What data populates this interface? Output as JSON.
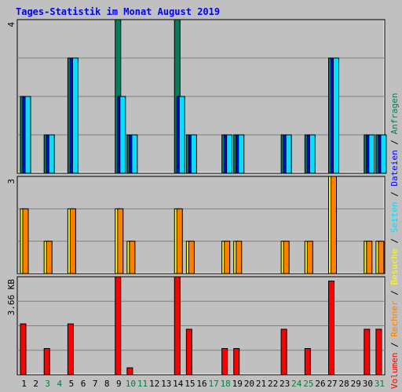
{
  "title": "Tages-Statistik im Monat August 2019",
  "colors": {
    "background": "#c0c0c0",
    "title": "#0000ff",
    "anfragen": "#00805a",
    "dateien": "#0000ff",
    "seiten": "#00e0ff",
    "besuche": "#ffff00",
    "rechner": "#ff8000",
    "volumen": "#ff0000",
    "weekend": "#008040"
  },
  "chart_data": {
    "type": "bar",
    "x": [
      "1",
      "2",
      "3",
      "4",
      "5",
      "6",
      "7",
      "8",
      "9",
      "10",
      "11",
      "12",
      "13",
      "14",
      "15",
      "16",
      "17",
      "18",
      "19",
      "20",
      "21",
      "22",
      "23",
      "24",
      "25",
      "26",
      "27",
      "28",
      "29",
      "30",
      "31"
    ],
    "weekend_days": [
      "3",
      "4",
      "10",
      "11",
      "17",
      "18",
      "24",
      "25",
      "31"
    ],
    "panels": [
      {
        "id": "top",
        "ymax_label": "4",
        "ylim": [
          0,
          4
        ],
        "series": [
          {
            "name": "Anfragen",
            "color": "#00805a",
            "values": [
              2,
              0,
              1,
              0,
              3,
              0,
              0,
              0,
              4,
              1,
              0,
              0,
              0,
              4,
              1,
              0,
              0,
              1,
              1,
              0,
              0,
              0,
              1,
              0,
              1,
              0,
              3,
              0,
              0,
              1,
              1
            ]
          },
          {
            "name": "Dateien",
            "color": "#0000ff",
            "values": [
              2,
              0,
              1,
              0,
              3,
              0,
              0,
              0,
              2,
              1,
              0,
              0,
              0,
              2,
              1,
              0,
              0,
              1,
              1,
              0,
              0,
              0,
              1,
              0,
              1,
              0,
              3,
              0,
              0,
              1,
              1
            ]
          },
          {
            "name": "Seiten",
            "color": "#00e0ff",
            "values": [
              2,
              0,
              1,
              0,
              3,
              0,
              0,
              0,
              2,
              1,
              0,
              0,
              0,
              2,
              1,
              0,
              0,
              1,
              1,
              0,
              0,
              0,
              1,
              0,
              1,
              0,
              3,
              0,
              0,
              1,
              1
            ]
          }
        ]
      },
      {
        "id": "middle",
        "ymax_label": "3",
        "ylim": [
          0,
          3
        ],
        "series": [
          {
            "name": "Besuche",
            "color": "#ffff00",
            "values": [
              2,
              0,
              1,
              0,
              2,
              0,
              0,
              0,
              2,
              1,
              0,
              0,
              0,
              2,
              1,
              0,
              0,
              1,
              1,
              0,
              0,
              0,
              1,
              0,
              1,
              0,
              3,
              0,
              0,
              1,
              1
            ]
          },
          {
            "name": "Rechner",
            "color": "#ff8000",
            "values": [
              2,
              0,
              1,
              0,
              2,
              0,
              0,
              0,
              2,
              1,
              0,
              0,
              0,
              2,
              1,
              0,
              0,
              1,
              1,
              0,
              0,
              0,
              1,
              0,
              1,
              0,
              3,
              0,
              0,
              1,
              1
            ]
          }
        ]
      },
      {
        "id": "bottom",
        "ymax_label": "3.66 KB",
        "ylim": [
          0,
          3.66
        ],
        "series": [
          {
            "name": "Volumen",
            "color": "#ff0000",
            "values": [
              1.9,
              0,
              0.98,
              0,
              1.9,
              0,
              0,
              0,
              3.66,
              0.26,
              0,
              0,
              0,
              3.66,
              1.7,
              0,
              0,
              0.98,
              0.98,
              0,
              0,
              0,
              1.7,
              0,
              0.98,
              0,
              3.5,
              0,
              0,
              1.7,
              1.7
            ]
          }
        ]
      }
    ],
    "legend": {
      "placement": "right-vertical",
      "entries": [
        {
          "label": "Volumen",
          "color": "#ff0000"
        },
        {
          "label": "Rechner",
          "color": "#ff8000"
        },
        {
          "label": "Besuche",
          "color": "#ffff00"
        },
        {
          "label": "Seiten",
          "color": "#00e0ff"
        },
        {
          "label": "Dateien",
          "color": "#0000ff"
        },
        {
          "label": "Anfragen",
          "color": "#00805a"
        }
      ],
      "separator": " / "
    },
    "grid": true
  }
}
